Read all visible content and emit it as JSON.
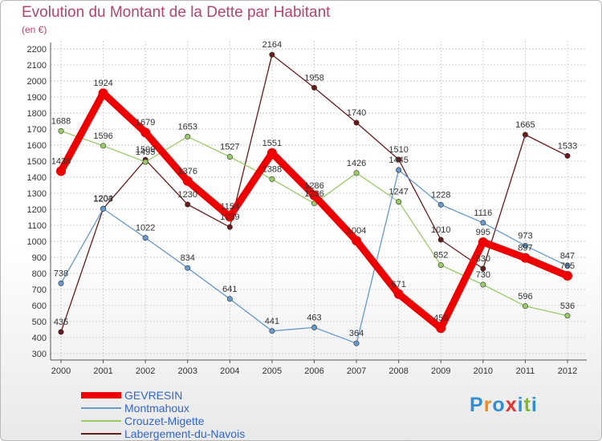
{
  "title": "Evolution du Montant de la Dette par Habitant",
  "subtitle": "(en €)",
  "brand": {
    "text": "Proxiti",
    "letters": [
      "P",
      "r",
      "o",
      "x",
      "i",
      "t",
      "i"
    ],
    "letter_colors": [
      "#2f8fd6",
      "#f08a1c",
      "#2f8fd6",
      "#e8322e",
      "#2f8fd6",
      "#7dbb2c",
      "#2f8fd6"
    ]
  },
  "chart_data": {
    "type": "line",
    "title": "Evolution du Montant de la Dette par Habitant",
    "subtitle": "(en €)",
    "xlabel": "",
    "ylabel": "",
    "x": [
      "2000",
      "2001",
      "2002",
      "2003",
      "2004",
      "2005",
      "2006",
      "2007",
      "2008",
      "2009",
      "2010",
      "2011",
      "2012"
    ],
    "ylim": [
      300,
      2200
    ],
    "yticks": [
      300,
      400,
      500,
      600,
      700,
      800,
      900,
      1000,
      1100,
      1200,
      1300,
      1400,
      1500,
      1600,
      1700,
      1800,
      1900,
      2000,
      2100,
      2200
    ],
    "grid": true,
    "legend_position": "bottom-left",
    "series": [
      {
        "name": "Labergement-du-Navois",
        "color": "#6b1a1a",
        "values": [
          435,
          1204,
          1509,
          1230,
          1089,
          2164,
          1958,
          1740,
          1510,
          1010,
          830,
          1665,
          1533
        ],
        "labels": [
          "435",
          "1204",
          "1509",
          "1230",
          "1089",
          "2164",
          "1958",
          "1740",
          "1510",
          "1010",
          "830",
          "1665",
          "1533"
        ]
      },
      {
        "name": "Crouzet-Migette",
        "color": "#99cc66",
        "values": [
          1688,
          1596,
          1495,
          1653,
          1527,
          1388,
          1236,
          1426,
          1247,
          852,
          730,
          596,
          536
        ],
        "labels": [
          "1688",
          "1596",
          "1495",
          "1653",
          "1527",
          "1388",
          "1236",
          "1426",
          "1247",
          "852",
          "730",
          "596",
          "536"
        ]
      },
      {
        "name": "Montmahoux",
        "color": "#6699cc",
        "values": [
          738,
          1203,
          1022,
          834,
          641,
          441,
          463,
          364,
          1445,
          1228,
          1116,
          973,
          847
        ],
        "labels": [
          "738",
          "1203",
          "1022",
          "834",
          "641",
          "441",
          "463",
          "364",
          "1445",
          "1228",
          "1116",
          "973",
          "847"
        ]
      },
      {
        "name": "GEVRESIN",
        "color": "#ee0000",
        "values": [
          1438,
          1924,
          1679,
          1376,
          1154,
          1551,
          1286,
          1004,
          671,
          459,
          995,
          897,
          785
        ],
        "labels": [
          "1438",
          "1924",
          "1679",
          "1376",
          "1154",
          "1551",
          "1286",
          "1004",
          "671",
          "459",
          "995",
          "897",
          "785"
        ]
      }
    ]
  },
  "legend": {
    "entries": [
      {
        "label": "GEVRESIN",
        "color": "#ee0000",
        "thick": true
      },
      {
        "label": "Montmahoux",
        "color": "#6699cc",
        "thick": false
      },
      {
        "label": "Crouzet-Migette",
        "color": "#99cc66",
        "thick": false
      },
      {
        "label": "Labergement-du-Navois",
        "color": "#6b1a1a",
        "thick": false
      }
    ]
  }
}
